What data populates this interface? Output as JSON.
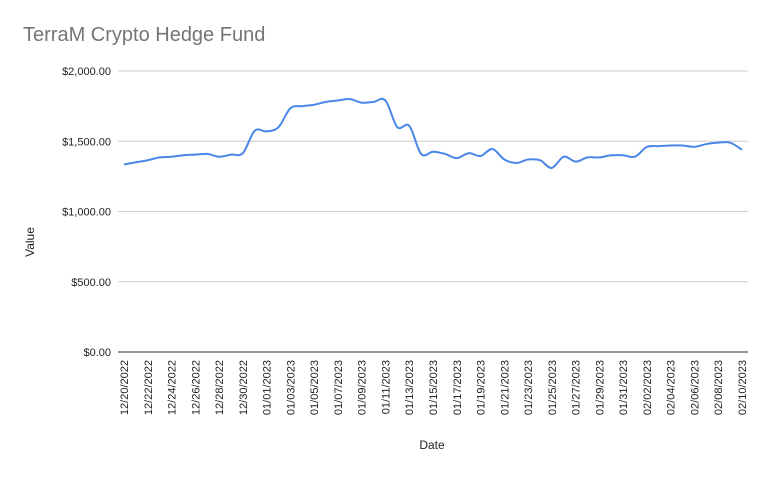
{
  "chart_data": {
    "type": "line",
    "title": "TerraM Crypto Hedge Fund",
    "xlabel": "Date",
    "ylabel": "Value",
    "ylim": [
      0,
      2000
    ],
    "y_ticks": [
      0,
      500,
      1000,
      1500,
      2000
    ],
    "y_tick_labels": [
      "$0.00",
      "$500.00",
      "$1,000.00",
      "$1,500.00",
      "$2,000.00"
    ],
    "grid": true,
    "legend": "none",
    "line_color": "#4a86e8",
    "x": [
      "12/20/2022",
      "12/21/2022",
      "12/22/2022",
      "12/23/2022",
      "12/24/2022",
      "12/25/2022",
      "12/26/2022",
      "12/27/2022",
      "12/28/2022",
      "12/29/2022",
      "12/30/2022",
      "12/31/2022",
      "01/01/2023",
      "01/02/2023",
      "01/03/2023",
      "01/04/2023",
      "01/05/2023",
      "01/06/2023",
      "01/07/2023",
      "01/08/2023",
      "01/09/2023",
      "01/10/2023",
      "01/11/2023",
      "01/12/2023",
      "01/13/2023",
      "01/14/2023",
      "01/15/2023",
      "01/16/2023",
      "01/17/2023",
      "01/18/2023",
      "01/19/2023",
      "01/20/2023",
      "01/21/2023",
      "01/22/2023",
      "01/23/2023",
      "01/24/2023",
      "01/25/2023",
      "01/26/2023",
      "01/27/2023",
      "01/28/2023",
      "01/29/2023",
      "01/30/2023",
      "01/31/2023",
      "02/01/2023",
      "02/02/2023",
      "02/03/2023",
      "02/04/2023",
      "02/05/2023",
      "02/06/2023",
      "02/07/2023",
      "02/08/2023",
      "02/09/2023",
      "02/10/2023"
    ],
    "x_tick_labels": [
      "12/20/2022",
      "12/22/2022",
      "12/24/2022",
      "12/26/2022",
      "12/28/2022",
      "12/30/2022",
      "01/01/2023",
      "01/03/2023",
      "01/05/2023",
      "01/07/2023",
      "01/09/2023",
      "01/11/2023",
      "01/13/2023",
      "01/15/2023",
      "01/17/2023",
      "01/19/2023",
      "01/21/2023",
      "01/23/2023",
      "01/25/2023",
      "01/27/2023",
      "01/29/2023",
      "01/31/2023",
      "02/02/2023",
      "02/04/2023",
      "02/06/2023",
      "02/08/2023",
      "02/10/2023"
    ],
    "series": [
      {
        "values": [
          1335,
          1350,
          1365,
          1385,
          1390,
          1400,
          1405,
          1410,
          1390,
          1405,
          1415,
          1575,
          1570,
          1600,
          1735,
          1750,
          1760,
          1780,
          1790,
          1800,
          1775,
          1780,
          1790,
          1600,
          1610,
          1410,
          1425,
          1410,
          1380,
          1415,
          1395,
          1445,
          1370,
          1345,
          1370,
          1365,
          1310,
          1390,
          1355,
          1385,
          1385,
          1400,
          1400,
          1390,
          1460,
          1465,
          1470,
          1470,
          1460,
          1480,
          1490,
          1490,
          1440
        ]
      }
    ]
  }
}
